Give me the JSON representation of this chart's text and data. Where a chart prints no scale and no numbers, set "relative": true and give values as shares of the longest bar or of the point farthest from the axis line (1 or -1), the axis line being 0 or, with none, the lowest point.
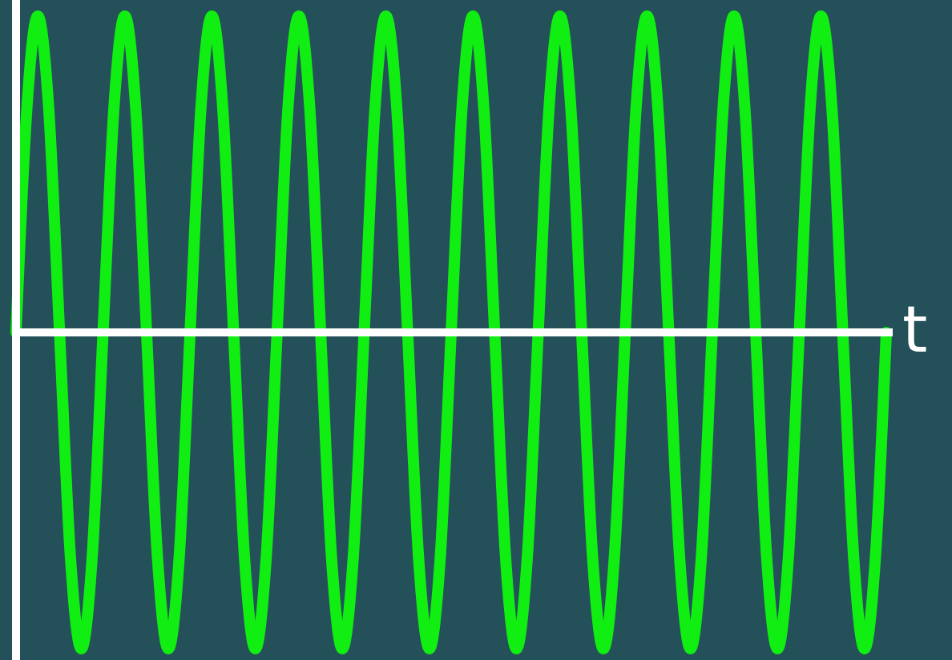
{
  "chart_data": {
    "type": "line",
    "relative": true,
    "xlabel": "t",
    "marker": "none",
    "line_style": "solid",
    "categories": [
      null,
      null,
      null,
      null,
      null,
      null,
      null,
      null,
      null,
      null,
      null,
      null,
      null,
      null,
      null,
      null,
      null,
      null,
      null,
      null,
      null,
      null,
      null,
      null,
      null,
      null,
      null,
      null,
      null,
      null,
      null,
      null,
      null,
      null,
      null,
      null,
      null,
      null,
      null,
      null,
      null,
      null,
      null,
      null,
      null,
      null,
      null,
      null,
      null,
      null,
      null,
      null,
      null,
      null,
      null,
      null,
      null,
      null,
      null,
      null,
      null,
      null,
      null,
      null,
      null,
      null,
      null,
      null,
      null,
      null,
      null,
      null,
      null,
      null,
      null,
      null,
      null,
      null,
      null,
      null,
      null
    ],
    "series": [
      {
        "color": "#11ee11",
        "values": [
          0,
          0.71,
          1,
          0.71,
          0,
          -0.71,
          -1,
          -0.71,
          0,
          0.71,
          1,
          0.71,
          0,
          -0.71,
          -1,
          -0.71,
          0,
          0.71,
          1,
          0.71,
          0,
          -0.71,
          -1,
          -0.71,
          0,
          0.71,
          1,
          0.71,
          0,
          -0.71,
          -1,
          -0.71,
          0,
          0.71,
          1,
          0.71,
          0,
          -0.71,
          -1,
          -0.71,
          0,
          0.71,
          1,
          0.71,
          0,
          -0.71,
          -1,
          -0.71,
          0,
          0.71,
          1,
          0.71,
          0,
          -0.71,
          -1,
          -0.71,
          0,
          0.71,
          1,
          0.71,
          0,
          -0.71,
          -1,
          -0.71,
          0,
          0.71,
          1,
          0.71,
          0,
          -0.71,
          -1,
          -0.71,
          0,
          0.71,
          1,
          0.71,
          0,
          -0.71,
          -1,
          -0.71,
          0
        ]
      }
    ]
  }
}
